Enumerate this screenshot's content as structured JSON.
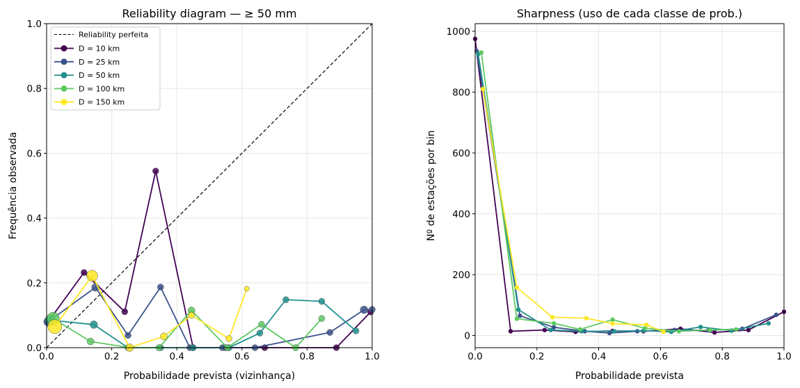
{
  "chart_data": [
    {
      "type": "line",
      "title": "Reliability diagram — ≥ 50 mm",
      "xlabel": "Probabilidade prevista (vizinhança)",
      "ylabel": "Frequência observada",
      "xlim": [
        0,
        1
      ],
      "ylim": [
        0,
        1
      ],
      "xticks": [
        "0.0",
        "0.2",
        "0.4",
        "0.6",
        "0.8",
        "1.0"
      ],
      "yticks": [
        "0.0",
        "0.2",
        "0.4",
        "0.6",
        "0.8",
        "1.0"
      ],
      "grid": true,
      "legend_position": "top-left",
      "reference_line": {
        "name": "Reliability perfeita",
        "x": [
          0,
          1
        ],
        "y": [
          0,
          1
        ],
        "color": "#000000",
        "style": "dashed"
      },
      "series": [
        {
          "name": "D = 10 km",
          "color": "#440154",
          "x": [
            0.005,
            0.115,
            0.24,
            0.335,
            0.45,
            0.55,
            0.67,
            0.89,
            0.995
          ],
          "y": [
            0.08,
            0.232,
            0.111,
            0.545,
            0.0,
            0.0,
            0.0,
            0.0,
            0.11
          ],
          "sizes": [
            9,
            9,
            9,
            9,
            9,
            9,
            9,
            9,
            9
          ]
        },
        {
          "name": "D = 25 km",
          "color": "#3b528b",
          "x": [
            0.005,
            0.15,
            0.25,
            0.35,
            0.44,
            0.54,
            0.64,
            0.87,
            0.975,
            1.0
          ],
          "y": [
            0.08,
            0.186,
            0.038,
            0.187,
            0.0,
            0.0,
            0.0,
            0.047,
            0.117,
            0.118
          ],
          "sizes": [
            13,
            11,
            9,
            9,
            9,
            9,
            9,
            9,
            11,
            9
          ]
        },
        {
          "name": "D = 50 km",
          "color": "#21918c",
          "x": [
            0.01,
            0.145,
            0.25,
            0.35,
            0.45,
            0.56,
            0.655,
            0.735,
            0.845,
            0.95
          ],
          "y": [
            0.085,
            0.071,
            0.0,
            0.0,
            0.0,
            0.0,
            0.045,
            0.148,
            0.143,
            0.052
          ],
          "sizes": [
            14,
            11,
            9,
            9,
            9,
            9,
            9,
            9,
            9,
            9
          ]
        },
        {
          "name": "D = 100 km",
          "color": "#5ec962",
          "x": [
            0.02,
            0.135,
            0.255,
            0.345,
            0.445,
            0.555,
            0.66,
            0.765,
            0.845
          ],
          "y": [
            0.09,
            0.019,
            0.0,
            0.0,
            0.115,
            0.0,
            0.072,
            0.0,
            0.09
          ],
          "sizes": [
            18,
            10,
            9,
            9,
            10,
            9,
            9,
            9,
            9
          ]
        },
        {
          "name": "D = 150 km",
          "color": "#fde725",
          "x": [
            0.025,
            0.14,
            0.255,
            0.36,
            0.445,
            0.56,
            0.615
          ],
          "y": [
            0.065,
            0.222,
            0.0,
            0.035,
            0.1,
            0.028,
            0.182
          ],
          "sizes": [
            20,
            16,
            11,
            10,
            9,
            9,
            7
          ]
        }
      ]
    },
    {
      "type": "line",
      "title": "Sharpness (uso de cada classe de prob.)",
      "xlabel": "Probabilidade prevista",
      "ylabel": "Nº de estações por bin",
      "xlim": [
        0,
        1
      ],
      "ylim": [
        -40,
        1025
      ],
      "xticks": [
        "0.0",
        "0.2",
        "0.4",
        "0.6",
        "0.8",
        "1.0"
      ],
      "yticks": [
        "0",
        "200",
        "400",
        "600",
        "800",
        "1000"
      ],
      "grid": true,
      "series": [
        {
          "name": "D = 10 km",
          "color": "#440154",
          "x": [
            0.0,
            0.115,
            0.225,
            0.325,
            0.445,
            0.545,
            0.665,
            0.775,
            0.885,
            1.0
          ],
          "y": [
            975,
            14,
            18,
            12,
            15,
            14,
            22,
            10,
            18,
            78
          ]
        },
        {
          "name": "D = 25 km",
          "color": "#3b528b",
          "x": [
            0.005,
            0.145,
            0.255,
            0.355,
            0.435,
            0.525,
            0.645,
            0.755,
            0.865,
            0.975
          ],
          "y": [
            935,
            65,
            27,
            14,
            8,
            14,
            18,
            17,
            22,
            68
          ]
        },
        {
          "name": "D = 50 km",
          "color": "#21918c",
          "x": [
            0.01,
            0.14,
            0.245,
            0.345,
            0.45,
            0.545,
            0.635,
            0.73,
            0.83,
            0.95
          ],
          "y": [
            925,
            85,
            18,
            14,
            14,
            16,
            12,
            28,
            16,
            40
          ]
        },
        {
          "name": "D = 100 km",
          "color": "#5ec962",
          "x": [
            0.02,
            0.135,
            0.255,
            0.34,
            0.445,
            0.55,
            0.66,
            0.76,
            0.845
          ],
          "y": [
            930,
            55,
            40,
            20,
            52,
            24,
            14,
            18,
            20
          ]
        },
        {
          "name": "D = 150 km",
          "color": "#fde725",
          "x": [
            0.025,
            0.135,
            0.25,
            0.36,
            0.445,
            0.555,
            0.61
          ],
          "y": [
            810,
            158,
            60,
            57,
            39,
            35,
            12
          ]
        }
      ]
    }
  ]
}
